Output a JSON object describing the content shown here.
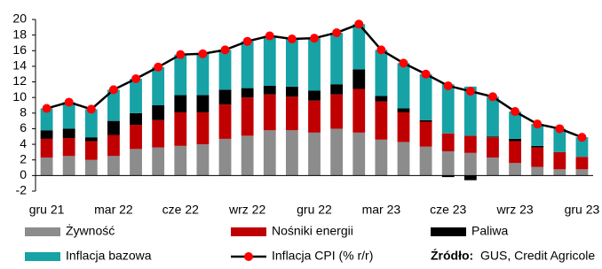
{
  "chart_data": {
    "type": "bar",
    "categories": [
      "gru 21",
      null,
      null,
      "mar 22",
      null,
      null,
      "cze 22",
      null,
      null,
      "wrz 22",
      null,
      null,
      "gru 22",
      null,
      null,
      "mar 23",
      null,
      null,
      "cze 23",
      null,
      null,
      "wrz 23",
      null,
      null,
      "gru 23"
    ],
    "series": [
      {
        "name": "Żywność",
        "type": "bar",
        "color": "#8c8c8c",
        "values": [
          2.3,
          2.5,
          2.0,
          2.5,
          3.4,
          3.6,
          3.8,
          4.0,
          4.7,
          5.1,
          5.8,
          5.8,
          5.5,
          6.0,
          5.5,
          4.6,
          4.3,
          3.7,
          3.1,
          2.9,
          2.3,
          1.6,
          1.1,
          0.8,
          0.8
        ]
      },
      {
        "name": "Nośniki energii",
        "type": "bar",
        "color": "#c00000",
        "values": [
          2.4,
          2.3,
          2.4,
          2.7,
          3.1,
          3.5,
          4.3,
          4.1,
          4.4,
          4.9,
          4.6,
          4.3,
          4.1,
          4.4,
          5.6,
          4.9,
          3.8,
          3.2,
          2.3,
          2.2,
          2.6,
          2.8,
          2.5,
          2.2,
          1.6
        ]
      },
      {
        "name": "Paliwa",
        "type": "bar",
        "color": "#000000",
        "values": [
          1.1,
          1.2,
          0.5,
          1.8,
          1.5,
          1.9,
          2.2,
          2.2,
          1.9,
          1.2,
          1.1,
          1.3,
          1.3,
          1.3,
          2.5,
          0.7,
          0.5,
          0.2,
          -0.2,
          -0.6,
          0.1,
          0.3,
          0.2,
          0.0,
          0.0
        ]
      },
      {
        "name": "Inflacja bazowa",
        "type": "bar",
        "color": "#17a2a6",
        "values": [
          2.8,
          3.4,
          3.6,
          4.0,
          4.4,
          4.9,
          5.2,
          5.3,
          5.1,
          6.0,
          6.4,
          6.1,
          6.7,
          6.6,
          5.8,
          5.9,
          5.8,
          5.9,
          6.3,
          6.3,
          5.1,
          3.5,
          2.8,
          3.0,
          2.5
        ]
      },
      {
        "name": "Inflacja CPI (% r/r)",
        "type": "line",
        "color": "#000000",
        "marker_color": "#ff0000",
        "values": [
          8.6,
          9.4,
          8.5,
          11.0,
          12.4,
          13.9,
          15.5,
          15.6,
          16.1,
          17.2,
          17.9,
          17.5,
          17.6,
          18.3,
          19.4,
          16.1,
          14.4,
          13.0,
          11.5,
          10.8,
          10.1,
          8.2,
          6.6,
          6.0,
          4.9
        ]
      }
    ],
    "ylim": [
      -2,
      20
    ],
    "yticks": [
      -2,
      0,
      2,
      4,
      6,
      8,
      10,
      12,
      14,
      16,
      18,
      20
    ],
    "grid": false,
    "source_label": "Źródło:",
    "source": "GUS, Credit Agricole"
  }
}
